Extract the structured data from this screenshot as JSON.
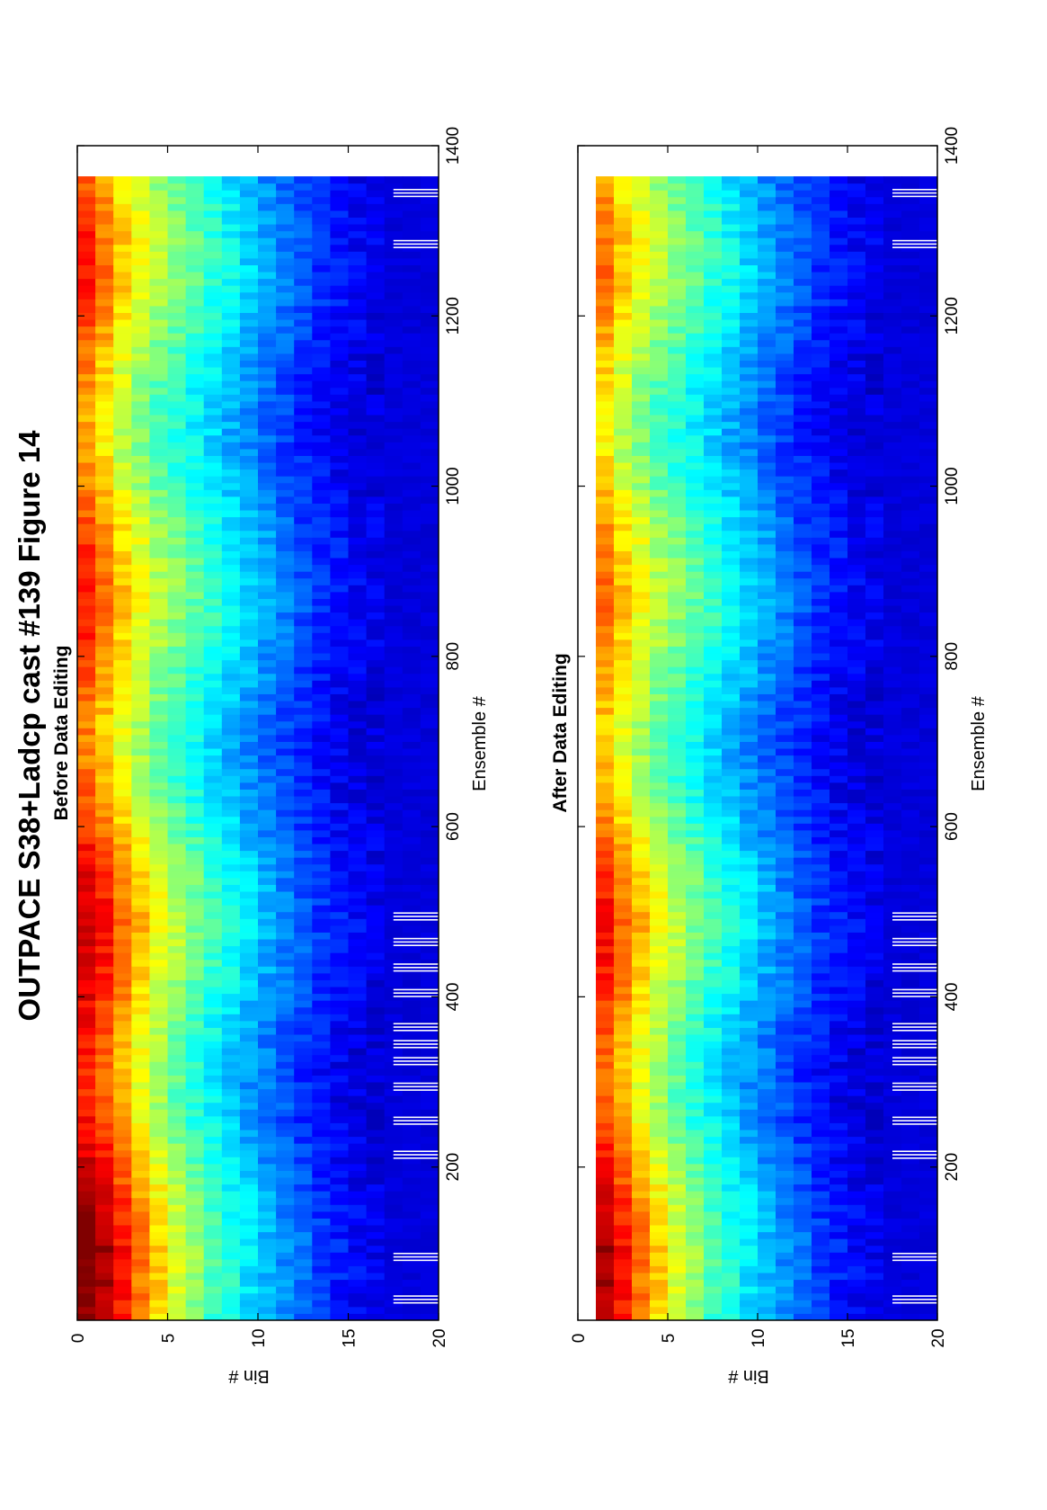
{
  "figure": {
    "title": "OUTPACE S38+Ladcp cast #139  Figure 14"
  },
  "chart_data": [
    {
      "type": "heatmap",
      "title": "Before Data Editing",
      "xlabel": "Ensemble #",
      "ylabel": "Bin #",
      "xlim": [
        20,
        1400
      ],
      "ylim": [
        0,
        20
      ],
      "xticks": [
        200,
        400,
        600,
        800,
        1000,
        1200,
        1400
      ],
      "xtick_labels": [
        "200",
        "400",
        "600",
        "800",
        "1000",
        "1200",
        "1400"
      ],
      "yticks": [
        0,
        5,
        10,
        15,
        20
      ],
      "ytick_labels": [
        "0",
        "5",
        "10",
        "15",
        "20"
      ],
      "bins": [
        1,
        20
      ],
      "ensembles": [
        20,
        1360
      ],
      "colormap": "jet",
      "orientation": "rotated 90° counter-clockwise",
      "row_profile_bins": [
        1,
        2,
        3,
        4,
        5,
        6,
        7,
        8,
        9,
        10,
        11,
        12,
        13,
        14,
        15,
        16,
        17,
        18,
        19,
        20
      ],
      "row_profile_values_ens_100": [
        0.97,
        0.92,
        0.82,
        0.72,
        0.63,
        0.55,
        0.48,
        0.42,
        0.37,
        0.32,
        0.28,
        0.24,
        0.2,
        0.16,
        0.13,
        0.11,
        0.1,
        0.09,
        0.09,
        0.08
      ],
      "row_profile_values_ens_800": [
        0.78,
        0.7,
        0.62,
        0.56,
        0.5,
        0.46,
        0.42,
        0.38,
        0.34,
        0.3,
        0.26,
        0.22,
        0.18,
        0.15,
        0.13,
        0.11,
        0.1,
        0.09,
        0.09,
        0.08
      ],
      "gaps_bin_range": [
        18,
        20
      ],
      "gap_ensembles": [
        40,
        90,
        210,
        250,
        290,
        320,
        340,
        360,
        400,
        430,
        460,
        490,
        1280,
        1340
      ]
    },
    {
      "type": "heatmap",
      "title": "After Data Editing",
      "xlabel": "Ensemble #",
      "ylabel": "Bin #",
      "xlim": [
        20,
        1400
      ],
      "ylim": [
        0,
        20
      ],
      "xticks": [
        200,
        400,
        600,
        800,
        1000,
        1200,
        1400
      ],
      "xtick_labels": [
        "200",
        "400",
        "600",
        "800",
        "1000",
        "1200",
        "1400"
      ],
      "yticks": [
        0,
        5,
        10,
        15,
        20
      ],
      "ytick_labels": [
        "0",
        "5",
        "10",
        "15",
        "20"
      ],
      "bins": [
        2,
        20
      ],
      "ensembles": [
        20,
        1360
      ],
      "colormap": "jet",
      "orientation": "rotated 90° counter-clockwise",
      "row_profile_bins": [
        2,
        3,
        4,
        5,
        6,
        7,
        8,
        9,
        10,
        11,
        12,
        13,
        14,
        15,
        16,
        17,
        18,
        19,
        20
      ],
      "row_profile_values_ens_100": [
        0.92,
        0.82,
        0.72,
        0.63,
        0.55,
        0.48,
        0.42,
        0.37,
        0.32,
        0.28,
        0.24,
        0.2,
        0.16,
        0.13,
        0.11,
        0.1,
        0.09,
        0.09,
        0.08
      ],
      "row_profile_values_ens_800": [
        0.7,
        0.62,
        0.56,
        0.5,
        0.46,
        0.42,
        0.38,
        0.34,
        0.3,
        0.26,
        0.22,
        0.18,
        0.15,
        0.13,
        0.11,
        0.1,
        0.09,
        0.09,
        0.08
      ],
      "gaps_bin_range": [
        18,
        20
      ],
      "gap_ensembles": [
        40,
        90,
        210,
        250,
        290,
        320,
        340,
        360,
        400,
        430,
        460,
        490,
        1280,
        1340
      ]
    }
  ]
}
